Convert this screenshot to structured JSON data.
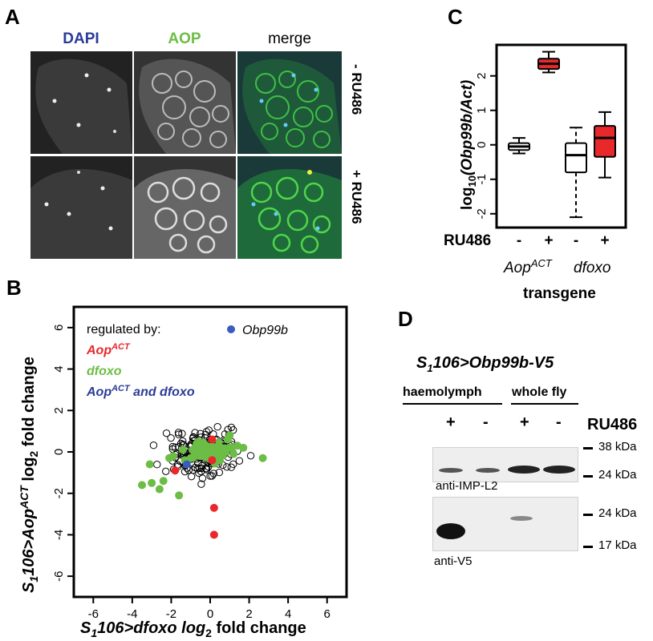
{
  "panels": {
    "A": "A",
    "B": "B",
    "C": "C",
    "D": "D"
  },
  "panelA": {
    "columns": [
      "DAPI",
      "AOP",
      "merge"
    ],
    "column_colors": [
      "#2b3b96",
      "#6cbd45",
      "#000000"
    ],
    "rows": [
      "- RU486",
      "+ RU486"
    ]
  },
  "panelB": {
    "legend_title": "regulated by:",
    "legend_aop": "Aop",
    "legend_aop_sup": "ACT",
    "legend_dfoxo": "dfoxo",
    "legend_both": "Aop",
    "legend_both_sup": "ACT",
    "legend_both_rest": " and dfoxo",
    "legend_obp": "Obp99b",
    "colors": {
      "aop": "#e8282b",
      "dfoxo": "#6cbd45",
      "both": "#2b3b96",
      "obp": "#3a5bbf"
    },
    "xlabel_pre": "S",
    "xlabel_sub": "1",
    "xlabel_mid": "106>dfoxo log",
    "xlabel_sub2": "2",
    "xlabel_post": " fold change",
    "ylabel_pre": "S",
    "ylabel_sub": "1",
    "ylabel_mid": "106>Aop",
    "ylabel_sup": "ACT",
    "ylabel_mid2": " log",
    "ylabel_sub2": "2",
    "ylabel_post": " fold change"
  },
  "panelC": {
    "ylabel_pre": "log",
    "ylabel_sub": "10",
    "ylabel_mid": "(Obp99b/Act)",
    "treatment_label": "RU486",
    "treatments": [
      "-",
      "+",
      "-",
      "+"
    ],
    "group1": "Aop",
    "group1_sup": "ACT",
    "group2": "dfoxo",
    "xlabel": "transgene"
  },
  "panelD": {
    "title_pre": "S",
    "title_sub": "1",
    "title_post": "106>Obp99b-V5",
    "haemolymph": "haemolymph",
    "whole_fly": "whole fly",
    "treatment_label": "RU486",
    "treatments": [
      "+",
      "-",
      "+",
      "-"
    ],
    "blot1_label": "anti-IMP-L2",
    "blot2_label": "anti-V5",
    "kda": [
      "38 kDa",
      "24 kDa",
      "24 kDa",
      "17 kDa"
    ]
  },
  "chart_data": [
    {
      "type": "scatter",
      "panel": "B",
      "xlim": [
        -7,
        7
      ],
      "ylim": [
        -7,
        7
      ],
      "x_ticks": [
        -6,
        -4,
        -2,
        0,
        2,
        4,
        6
      ],
      "y_ticks": [
        -6,
        -4,
        -2,
        0,
        2,
        4,
        6
      ],
      "series": [
        {
          "name": "Aop",
          "color": "#e8282b",
          "x": [
            -1.8,
            0.1,
            0.1,
            0.2,
            0.2
          ],
          "y": [
            -0.9,
            0.6,
            -0.4,
            -2.7,
            -4.0
          ]
        },
        {
          "name": "dfoxo",
          "color": "#6cbd45",
          "x": [
            -3.5,
            -3.0,
            -2.6,
            -2.1,
            -1.6,
            -1.4,
            -1.3,
            -0.6,
            -0.3,
            0.4,
            0.9,
            1.4,
            1.7,
            2.7,
            -2.4,
            -3.1,
            -1.9,
            0.5,
            1.0,
            -0.9,
            -0.5,
            0.0,
            0.3,
            0.7,
            -1.2,
            -0.2,
            0.2,
            0.6,
            1.1,
            -0.7,
            -1.0,
            0.8,
            1.2,
            -0.4,
            0.1
          ],
          "y": [
            -1.6,
            -1.5,
            -1.8,
            -0.3,
            -2.1,
            0.1,
            -0.4,
            0.5,
            0.3,
            0.0,
            0.6,
            0.3,
            0.2,
            -0.3,
            -1.4,
            -0.6,
            -0.2,
            -0.4,
            0.8,
            0.1,
            -0.2,
            0.2,
            0.0,
            0.1,
            -0.5,
            0.3,
            0.1,
            -0.1,
            0.2,
            0.4,
            -0.3,
            0.0,
            -0.1,
            0.1,
            0.2
          ]
        }
      ],
      "background": {
        "name": "Obp99b",
        "color": "#000000",
        "count_points": 170
      }
    },
    {
      "type": "box",
      "panel": "C",
      "ylim": [
        -2.4,
        2.9
      ],
      "y_ticks": [
        -2,
        -1,
        0,
        1,
        2
      ],
      "boxes": [
        {
          "name": "-",
          "color": "#ffffff",
          "whisker_low": -0.25,
          "q1": -0.15,
          "median": -0.05,
          "q3": 0.05,
          "whisker_high": 0.2
        },
        {
          "name": "+",
          "color": "#e8282b",
          "whisker_low": 2.1,
          "q1": 2.2,
          "median": 2.35,
          "q3": 2.5,
          "whisker_high": 2.7
        },
        {
          "name": "-",
          "color": "#ffffff",
          "whisker_low": -2.1,
          "q1": -0.8,
          "median": -0.3,
          "q3": 0.05,
          "whisker_high": 0.5
        },
        {
          "name": "+",
          "color": "#e8282b",
          "whisker_low": -0.95,
          "q1": -0.35,
          "median": 0.2,
          "q3": 0.55,
          "whisker_high": 0.95
        }
      ]
    }
  ]
}
